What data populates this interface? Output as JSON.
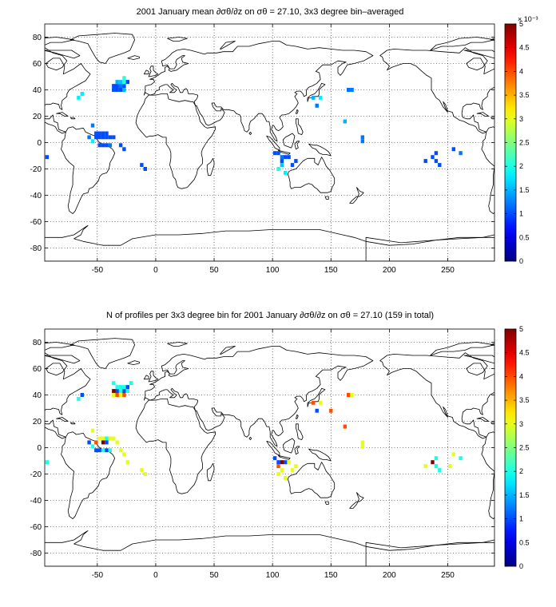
{
  "chart_data": [
    {
      "type": "heatmap",
      "title": "2001 January mean ∂σθ/∂z on σθ = 27.10, 3x3 degree bin–averaged",
      "xlim": [
        -95,
        290
      ],
      "ylim": [
        -90,
        90
      ],
      "xticks": [
        "-50",
        "0",
        "50",
        "100",
        "150",
        "200",
        "250"
      ],
      "xtick_values": [
        -50,
        0,
        50,
        100,
        150,
        200,
        250
      ],
      "yticks": [
        "80",
        "60",
        "40",
        "20",
        "0",
        "-20",
        "-40",
        "-60",
        "-80"
      ],
      "ytick_values": [
        80,
        60,
        40,
        20,
        0,
        -20,
        -40,
        -60,
        -80
      ],
      "grid": "dotted",
      "colormap": "jet",
      "colorbar": {
        "min": 0,
        "max": 5,
        "exponent": "× 10⁻³",
        "ticks": [
          "0",
          "0.5",
          "1",
          "1.5",
          "2",
          "2.5",
          "3",
          "3.5",
          "4",
          "4.5",
          "5"
        ],
        "tick_values": [
          0,
          0.5,
          1,
          1.5,
          2,
          2.5,
          3,
          3.5,
          4,
          4.5,
          5
        ]
      },
      "cell_size_deg": 3,
      "cells": [
        [
          -93,
          -11,
          1.0
        ],
        [
          -66,
          34,
          1.8
        ],
        [
          -63,
          37,
          1.8
        ],
        [
          -36,
          40,
          1.0
        ],
        [
          -33,
          40,
          1.0
        ],
        [
          -30,
          40,
          1.0
        ],
        [
          -27,
          40,
          1.5
        ],
        [
          -36,
          43,
          1.0
        ],
        [
          -33,
          43,
          1.0
        ],
        [
          -30,
          43,
          1.2
        ],
        [
          -27,
          43,
          1.0
        ],
        [
          -33,
          46,
          1.5
        ],
        [
          -30,
          46,
          1.6
        ],
        [
          -27,
          46,
          2.0
        ],
        [
          -27,
          49,
          2.1
        ],
        [
          -24,
          46,
          1.0
        ],
        [
          -54,
          13,
          1.2
        ],
        [
          -51,
          7,
          1.0
        ],
        [
          -48,
          7,
          1.0
        ],
        [
          -45,
          7,
          1.0
        ],
        [
          -42,
          7,
          1.0
        ],
        [
          -51,
          4,
          1.0
        ],
        [
          -48,
          4,
          1.0
        ],
        [
          -45,
          4,
          1.0
        ],
        [
          -42,
          4,
          1.0
        ],
        [
          -39,
          4,
          1.0
        ],
        [
          -36,
          4,
          1.0
        ],
        [
          -57,
          4,
          1.2
        ],
        [
          -54,
          1,
          1.8
        ],
        [
          -48,
          -2,
          1.0
        ],
        [
          -45,
          -2,
          1.0
        ],
        [
          -42,
          -2,
          1.0
        ],
        [
          -39,
          -2,
          1.2
        ],
        [
          -30,
          -2,
          1.0
        ],
        [
          -27,
          -5,
          1.0
        ],
        [
          -12,
          -17,
          1.0
        ],
        [
          -9,
          -20,
          1.0
        ],
        [
          102,
          -8,
          1.0
        ],
        [
          105,
          -8,
          1.0
        ],
        [
          108,
          -11,
          1.2
        ],
        [
          108,
          -14,
          1.0
        ],
        [
          111,
          -11,
          1.0
        ],
        [
          114,
          -11,
          1.0
        ],
        [
          108,
          -17,
          1.6
        ],
        [
          105,
          -20,
          2.0
        ],
        [
          111,
          -23,
          1.8
        ],
        [
          120,
          -14,
          1.0
        ],
        [
          117,
          -17,
          1.0
        ],
        [
          135,
          34,
          1.5
        ],
        [
          141,
          34,
          1.8
        ],
        [
          138,
          28,
          1.2
        ],
        [
          165,
          40,
          1.2
        ],
        [
          168,
          40,
          1.2
        ],
        [
          162,
          16,
          1.5
        ],
        [
          177,
          4,
          1.2
        ],
        [
          177,
          1,
          1.2
        ],
        [
          231,
          -14,
          1.0
        ],
        [
          237,
          -11,
          1.0
        ],
        [
          240,
          -8,
          1.0
        ],
        [
          240,
          -14,
          1.0
        ],
        [
          243,
          -17,
          1.0
        ],
        [
          255,
          -5,
          1.0
        ],
        [
          261,
          -8,
          1.2
        ]
      ]
    },
    {
      "type": "heatmap",
      "title": "N of profiles per 3x3 degree bin for 2001 January ∂σθ/∂z on σθ = 27.10 (159 in total)",
      "xlim": [
        -95,
        290
      ],
      "ylim": [
        -90,
        90
      ],
      "xticks": [
        "-50",
        "0",
        "50",
        "100",
        "150",
        "200",
        "250"
      ],
      "xtick_values": [
        -50,
        0,
        50,
        100,
        150,
        200,
        250
      ],
      "yticks": [
        "80",
        "60",
        "40",
        "20",
        "0",
        "-20",
        "-40",
        "-60",
        "-80"
      ],
      "ytick_values": [
        80,
        60,
        40,
        20,
        0,
        -20,
        -40,
        -60,
        -80
      ],
      "grid": "dotted",
      "colormap": "jet",
      "colorbar": {
        "min": 0,
        "max": 5,
        "ticks": [
          "0",
          "0.5",
          "1",
          "1.5",
          "2",
          "2.5",
          "3",
          "3.5",
          "4",
          "4.5",
          "5"
        ],
        "tick_values": [
          0,
          0.5,
          1,
          1.5,
          2,
          2.5,
          3,
          3.5,
          4,
          4.5,
          5
        ]
      },
      "cell_size_deg": 3,
      "cells": [
        [
          -93,
          -11,
          2
        ],
        [
          -66,
          37,
          2
        ],
        [
          -63,
          40,
          1
        ],
        [
          -36,
          40,
          3
        ],
        [
          -33,
          40,
          4
        ],
        [
          -30,
          40,
          3
        ],
        [
          -27,
          40,
          4
        ],
        [
          -36,
          43,
          5
        ],
        [
          -33,
          43,
          1
        ],
        [
          -30,
          43,
          2
        ],
        [
          -27,
          43,
          1
        ],
        [
          -24,
          43,
          2
        ],
        [
          -33,
          46,
          2
        ],
        [
          -30,
          46,
          2
        ],
        [
          -27,
          46,
          2
        ],
        [
          -24,
          46,
          1
        ],
        [
          -36,
          49,
          2
        ],
        [
          -21,
          49,
          2
        ],
        [
          -54,
          13,
          3
        ],
        [
          -48,
          7,
          3
        ],
        [
          -45,
          7,
          3
        ],
        [
          -42,
          7,
          2
        ],
        [
          -39,
          7,
          3
        ],
        [
          -36,
          7,
          3
        ],
        [
          -51,
          4,
          4
        ],
        [
          -57,
          4,
          1
        ],
        [
          -45,
          4,
          5
        ],
        [
          -42,
          4,
          1
        ],
        [
          -33,
          4,
          3
        ],
        [
          -54,
          1,
          2
        ],
        [
          -51,
          -2,
          1
        ],
        [
          -48,
          -2,
          1
        ],
        [
          -45,
          -2,
          2
        ],
        [
          -42,
          -2,
          1
        ],
        [
          -39,
          -2,
          2
        ],
        [
          -30,
          -2,
          3
        ],
        [
          -27,
          -5,
          3
        ],
        [
          -24,
          -11,
          3
        ],
        [
          -12,
          -17,
          3
        ],
        [
          -9,
          -20,
          3
        ],
        [
          102,
          -8,
          1
        ],
        [
          105,
          -11,
          1
        ],
        [
          105,
          -14,
          4
        ],
        [
          108,
          -11,
          5
        ],
        [
          111,
          -11,
          1
        ],
        [
          114,
          -11,
          3
        ],
        [
          108,
          -17,
          3
        ],
        [
          105,
          -20,
          3
        ],
        [
          111,
          -23,
          3
        ],
        [
          117,
          -17,
          3
        ],
        [
          120,
          -14,
          3
        ],
        [
          135,
          34,
          4
        ],
        [
          141,
          34,
          3
        ],
        [
          138,
          28,
          1
        ],
        [
          150,
          28,
          4
        ],
        [
          165,
          40,
          4
        ],
        [
          168,
          40,
          3
        ],
        [
          162,
          16,
          4
        ],
        [
          177,
          4,
          3
        ],
        [
          177,
          1,
          3
        ],
        [
          231,
          -14,
          3
        ],
        [
          237,
          -11,
          5
        ],
        [
          240,
          -8,
          2
        ],
        [
          240,
          -14,
          2
        ],
        [
          243,
          -17,
          2
        ],
        [
          252,
          -14,
          3
        ],
        [
          255,
          -5,
          3
        ],
        [
          261,
          -8,
          2
        ]
      ]
    }
  ]
}
